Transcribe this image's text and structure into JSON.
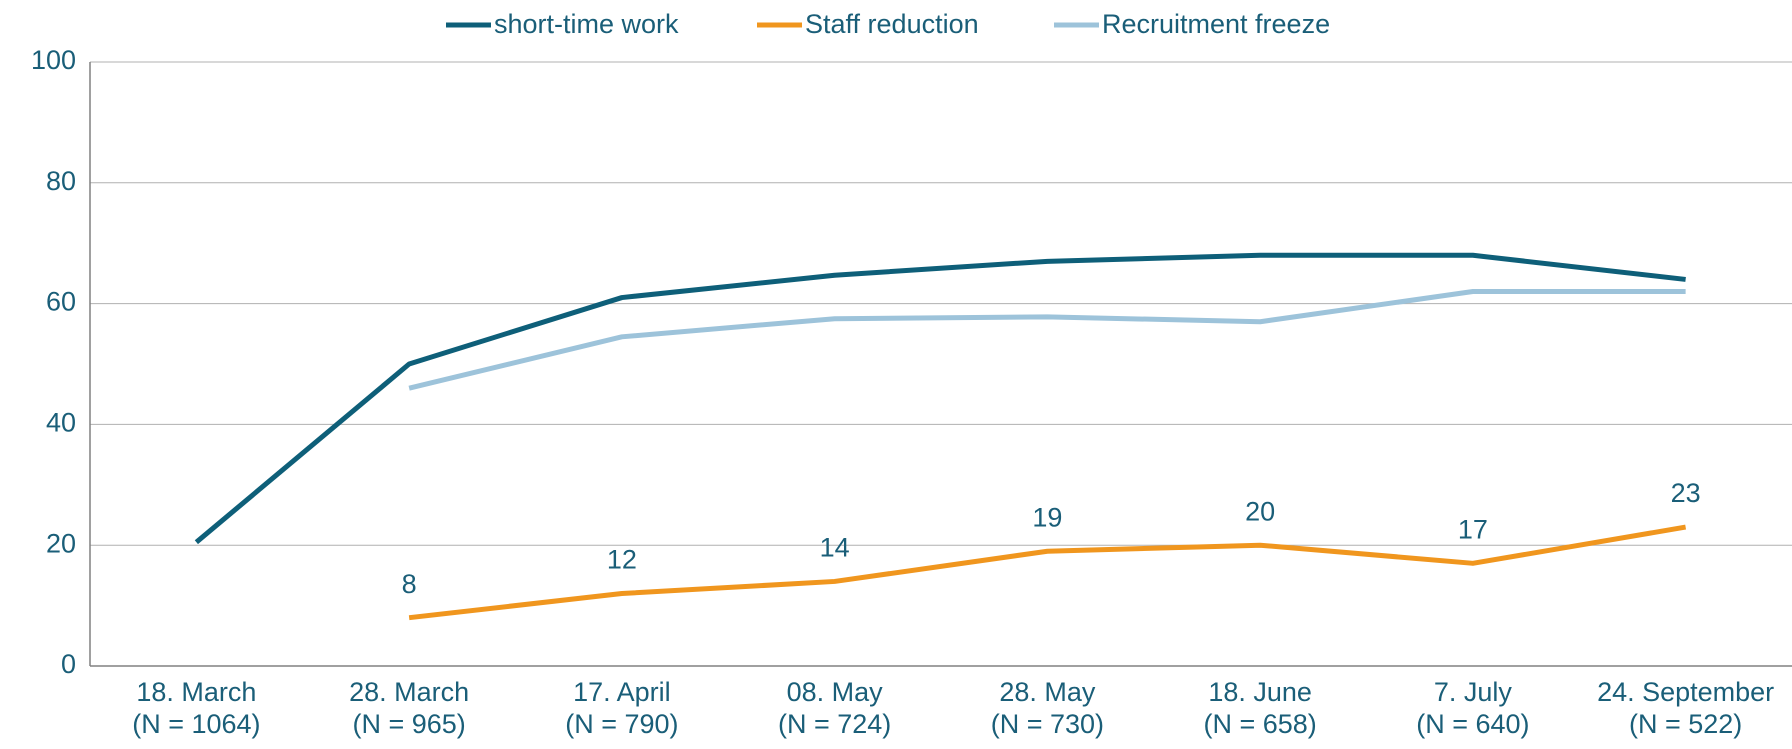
{
  "chart_data": {
    "type": "line",
    "categories": [
      [
        "18. March",
        "(N = 1064)"
      ],
      [
        "28. March",
        "(N = 965)"
      ],
      [
        "17. April",
        "(N = 790)"
      ],
      [
        "08. May",
        "(N = 724)"
      ],
      [
        "28. May",
        "(N = 730)"
      ],
      [
        "18. June",
        "(N = 658)"
      ],
      [
        "7. July",
        "(N = 640)"
      ],
      [
        "24. September",
        "(N = 522)"
      ]
    ],
    "series": [
      {
        "name": "short-time work",
        "color": "#0e5f79",
        "values": [
          20.5,
          50,
          61,
          64.7,
          67,
          68,
          68,
          64
        ]
      },
      {
        "name": "Staff reduction",
        "color": "#f0961e",
        "values": [
          null,
          8,
          12,
          14,
          19,
          20,
          17,
          23
        ],
        "data_labels": true
      },
      {
        "name": "Recruitment freeze",
        "color": "#9dc3da",
        "values": [
          null,
          46,
          54.5,
          57.5,
          57.8,
          57,
          62,
          62
        ]
      }
    ],
    "ylim": [
      0,
      100
    ],
    "yticks": [
      0,
      20,
      40,
      60,
      80,
      100
    ],
    "grid": true,
    "legend": "top"
  }
}
